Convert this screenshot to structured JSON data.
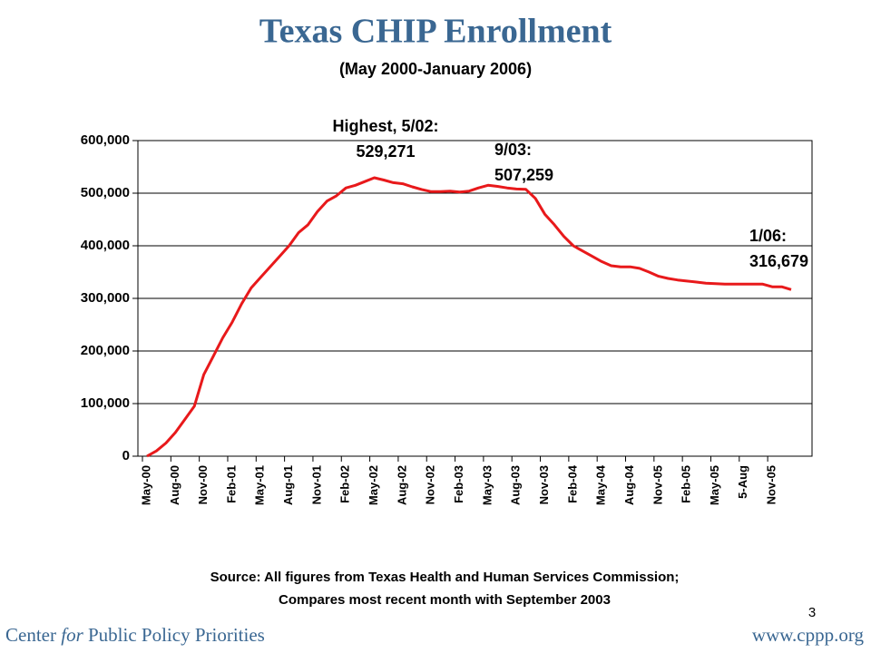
{
  "chart_data": {
    "type": "line",
    "title": "Texas CHIP Enrollment",
    "subtitle": "(May 2000-January 2006)",
    "categories": [
      "May-00",
      null,
      null,
      "Aug-00",
      null,
      null,
      "Nov-00",
      null,
      null,
      "Feb-01",
      null,
      null,
      "May-01",
      null,
      null,
      "Aug-01",
      null,
      null,
      "Nov-01",
      null,
      null,
      "Feb-02",
      null,
      null,
      "May-02",
      null,
      null,
      "Aug-02",
      null,
      null,
      "Nov-02",
      null,
      null,
      "Feb-03",
      null,
      null,
      "May-03",
      null,
      null,
      "Aug-03",
      null,
      null,
      "Nov-03",
      null,
      null,
      "Feb-04",
      null,
      null,
      "May-04",
      null,
      null,
      "Aug-04",
      null,
      null,
      "Nov-05",
      null,
      null,
      "Feb-05",
      null,
      null,
      "May-05",
      null,
      null,
      "5-Aug",
      null,
      null,
      "Nov-05",
      null,
      null
    ],
    "series": [
      {
        "name": "CHIP Enrollment",
        "color": "#e8191b",
        "values": [
          0,
          10000,
          25000,
          45000,
          70000,
          95000,
          155000,
          190000,
          225000,
          255000,
          290000,
          320000,
          340000,
          360000,
          380000,
          400000,
          425000,
          440000,
          465000,
          485000,
          495000,
          510000,
          515000,
          522000,
          529271,
          525000,
          520000,
          518000,
          512000,
          507000,
          503000,
          503000,
          504000,
          502000,
          504000,
          510000,
          515000,
          513000,
          510000,
          508000,
          507259,
          490000,
          460000,
          440000,
          418000,
          400000,
          390000,
          380000,
          370000,
          362000,
          360000,
          360000,
          357000,
          350000,
          342000,
          338000,
          335000,
          333000,
          331000,
          329000,
          328000,
          327000,
          327000,
          327000,
          327000,
          327000,
          322000,
          322000,
          316679
        ]
      }
    ],
    "ylim": [
      0,
      600000
    ],
    "yticks": [
      0,
      {
        "value": 100000,
        "label": "100,000"
      },
      {
        "value": 200000,
        "label": "200,000"
      },
      {
        "value": 300000,
        "label": "300,000"
      },
      {
        "value": 400000,
        "label": "400,000"
      },
      {
        "value": 500000,
        "label": "500,000"
      },
      {
        "value": 600000,
        "label": "600,000"
      }
    ],
    "annotations": [
      [
        "Highest, 5/02:",
        "529,271"
      ],
      [
        "9/03:",
        "507,259"
      ],
      [
        "1/06:",
        "316,679"
      ]
    ],
    "source": [
      "Source: All figures from Texas Health and Human Services Commission;",
      "Compares most recent month with September 2003"
    ]
  },
  "footer": {
    "organization": [
      "Center",
      "for",
      "Public Policy Priorities"
    ],
    "website": "www.cppp.org",
    "page_number": "3"
  }
}
